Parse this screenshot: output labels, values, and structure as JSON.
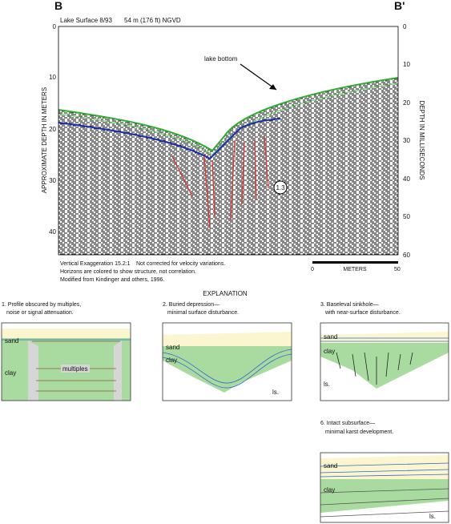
{
  "profile": {
    "left_label": "B",
    "right_label": "B'",
    "lake_surface": "Lake Surface 8/93",
    "elevation": "54 m (176 ft) NGVD",
    "lake_bottom": "lake bottom",
    "marker": "1.3",
    "left_axis": {
      "title": "APPROXIMATE DEPTH IN METERS",
      "ticks": [
        0,
        10,
        20,
        30,
        40
      ]
    },
    "right_axis": {
      "title": "DEPTH IN MILLISECONDS",
      "ticks": [
        0,
        10,
        20,
        30,
        40,
        50,
        60
      ]
    },
    "notes": [
      "Vertical Exaggeration 15.2:1",
      "Not corrected for velocity variations.",
      "Horizons are colored to show structure, not correlation.",
      "Modified from Kindinger and others, 1996."
    ],
    "scale": {
      "start": 0,
      "unit": "METERS",
      "end": 50
    }
  },
  "explanation": {
    "title": "EXPLANATION",
    "panels": [
      {
        "title": [
          "1. Profile obscured by multiples,",
          "noise or signal attenuation."
        ],
        "labels": [
          "sand",
          "clay",
          "multiples"
        ]
      },
      {
        "title": [
          "2. Buried depression—",
          "minimal surface disturbance."
        ],
        "labels": [
          "sand",
          "clay",
          "ls."
        ]
      },
      {
        "title": [
          "3. Baseleval sinkhole—",
          "with near-surface disturbance."
        ],
        "labels": [
          "sand",
          "clay",
          "ls."
        ]
      },
      {
        "title": [
          "6. Intact subsurface—",
          "minimal karst development."
        ],
        "labels": [
          "sand",
          "clay",
          "ls."
        ]
      }
    ]
  }
}
